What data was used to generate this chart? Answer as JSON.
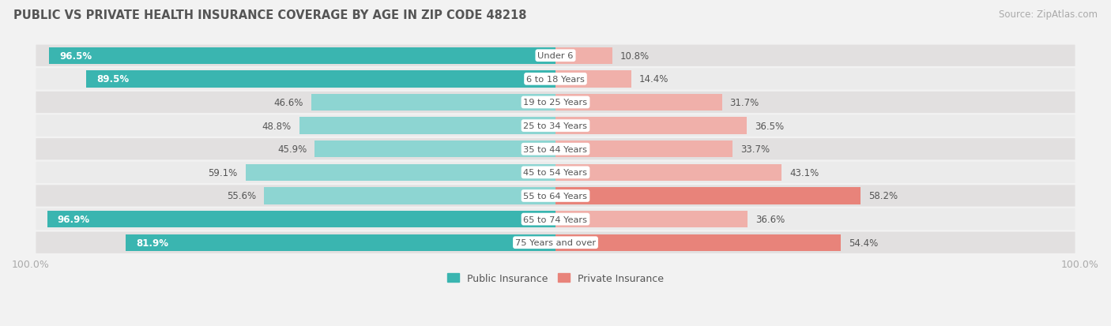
{
  "title": "PUBLIC VS PRIVATE HEALTH INSURANCE COVERAGE BY AGE IN ZIP CODE 48218",
  "source": "Source: ZipAtlas.com",
  "categories": [
    "Under 6",
    "6 to 18 Years",
    "19 to 25 Years",
    "25 to 34 Years",
    "35 to 44 Years",
    "45 to 54 Years",
    "55 to 64 Years",
    "65 to 74 Years",
    "75 Years and over"
  ],
  "public_values": [
    96.5,
    89.5,
    46.6,
    48.8,
    45.9,
    59.1,
    55.6,
    96.9,
    81.9
  ],
  "private_values": [
    10.8,
    14.4,
    31.7,
    36.5,
    33.7,
    43.1,
    58.2,
    36.6,
    54.4
  ],
  "public_color": "#3ab5b0",
  "public_color_light": "#8dd5d2",
  "private_color": "#e8837a",
  "private_color_light": "#f0b0aa",
  "row_bg_dark": "#e2e0e0",
  "row_bg_light": "#ebebeb",
  "bg_color": "#f2f2f2",
  "title_color": "#555555",
  "label_color": "#555555",
  "axis_label_color": "#aaaaaa",
  "white_text_threshold_pub": 80,
  "figsize": [
    14.06,
    4.14
  ],
  "dpi": 100
}
